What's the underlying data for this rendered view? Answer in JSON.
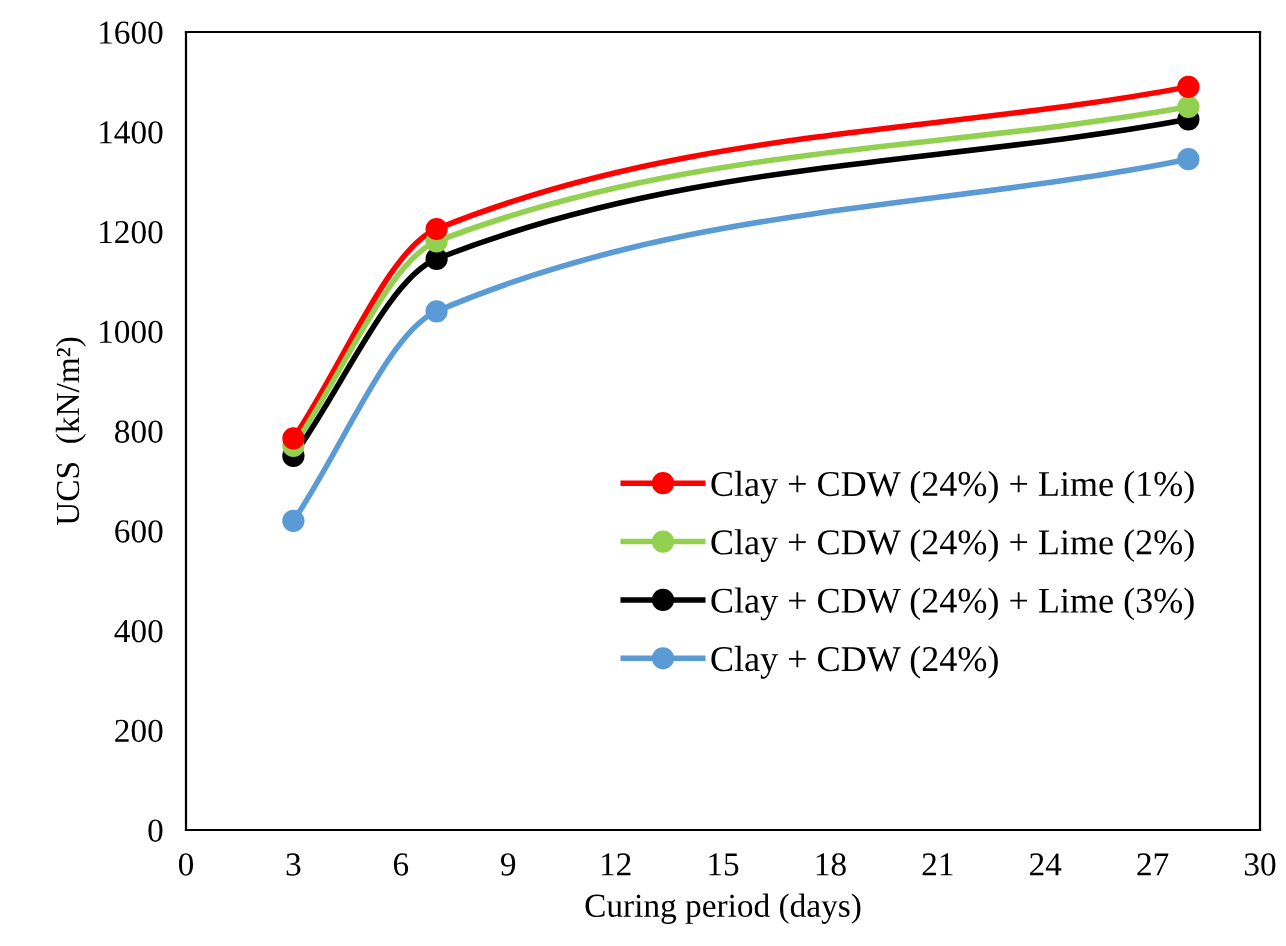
{
  "chart_data": {
    "type": "line",
    "xlabel": "Curing period (days)",
    "ylabel": "UCS  (kN/m²)",
    "x": [
      3,
      7,
      28
    ],
    "series": [
      {
        "name": "Clay + CDW (24%) + Lime (1%)",
        "color": "#ff0000",
        "values": [
          785,
          1205,
          1490
        ]
      },
      {
        "name": "Clay + CDW (24%) + Lime (2%)",
        "color": "#92d050",
        "values": [
          770,
          1180,
          1450
        ]
      },
      {
        "name": "Clay + CDW (24%) + Lime (3%)",
        "color": "#000000",
        "values": [
          750,
          1145,
          1425
        ]
      },
      {
        "name": "Clay + CDW (24%)",
        "color": "#5b9bd5",
        "values": [
          620,
          1040,
          1345
        ]
      }
    ],
    "xlim": [
      0,
      30
    ],
    "xticks": [
      0,
      3,
      6,
      9,
      12,
      15,
      18,
      21,
      24,
      27,
      30
    ],
    "ylim": [
      0,
      1600
    ],
    "yticks": [
      0,
      200,
      400,
      600,
      800,
      1000,
      1200,
      1400,
      1600
    ],
    "grid": false,
    "legend": "right",
    "marker": "circle",
    "line_style": "solid"
  }
}
